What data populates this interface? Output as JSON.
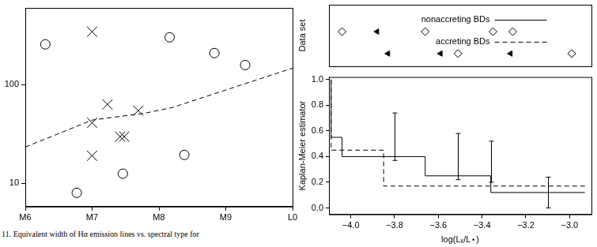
{
  "chart_data": [
    {
      "type": "scatter",
      "caption": "11. Equivalent width of Hα emission lines vs. spectral type for",
      "log": "y",
      "grid": false,
      "xlim": [
        6,
        10
      ],
      "xticks": [
        {
          "value": 6,
          "label": "M6"
        },
        {
          "value": 7,
          "label": "M7"
        },
        {
          "value": 8,
          "label": "M8"
        },
        {
          "value": 9,
          "label": "M9"
        },
        {
          "value": 10,
          "label": "L0"
        }
      ],
      "ylim": [
        5.8,
        600
      ],
      "yticks": [
        10,
        100
      ],
      "series": [
        {
          "marker": "circle",
          "color": "#000000",
          "x": [
            6.3,
            6.77,
            7.46,
            8.16,
            8.38,
            8.83,
            9.29
          ],
          "values": [
            256,
            8.0,
            12.5,
            302,
            19.4,
            209,
            158
          ]
        },
        {
          "marker": "cross",
          "color": "#000000",
          "x": [
            7.0,
            7.0,
            7.0,
            7.23,
            7.42,
            7.48,
            7.69
          ],
          "values": [
            344,
            41,
            19,
            63,
            29.7,
            29.7,
            54.5
          ]
        },
        {
          "type": "line",
          "line_style": "dashed",
          "color": "#000000",
          "x": [
            6,
            7,
            7.8,
            8.2,
            10
          ],
          "values": [
            23.3,
            43.7,
            51.5,
            58.6,
            147
          ]
        }
      ]
    },
    {
      "type": "strip",
      "y_label": "Data set",
      "tick_labels": false,
      "grid": false,
      "xlim": [
        -4.1,
        -2.9
      ],
      "xticks": [
        -4.0,
        -3.8,
        -3.6,
        -3.4,
        -3.2,
        -3.0
      ],
      "series": [
        {
          "name": "nonaccreting BDs",
          "line_style": "solid",
          "color": "#000000",
          "detections": [
            -4.04,
            -3.66,
            -3.35,
            -3.26
          ],
          "upper_limits": [
            -3.88
          ]
        },
        {
          "name": "accreting BDs",
          "line_style": "dashed",
          "color": "#000000",
          "detections": [
            -3.51,
            -2.99
          ],
          "upper_limits": [
            -3.83,
            -3.59,
            -3.27
          ]
        }
      ]
    },
    {
      "type": "step",
      "x_label": "log(Lₓ/L⋆)",
      "y_label": "Kaplan-Meier estimator",
      "grid": false,
      "xlim": [
        -4.1,
        -2.9
      ],
      "xticks": [
        {
          "value": -4.0,
          "label": "−4.0"
        },
        {
          "value": -3.8,
          "label": "−3.8"
        },
        {
          "value": -3.6,
          "label": "−3.6"
        },
        {
          "value": -3.4,
          "label": "−3.4"
        },
        {
          "value": -3.2,
          "label": "−3.2"
        },
        {
          "value": -3.0,
          "label": "−3.0"
        }
      ],
      "ylim": [
        -0.05,
        1.02
      ],
      "yticks": [
        {
          "value": 0,
          "label": "0.0"
        },
        0.2,
        0.4,
        0.6,
        0.8,
        {
          "value": 1,
          "label": "1.0"
        }
      ],
      "series": [
        {
          "line_style": "solid",
          "color": "#000000",
          "x": [
            -4.09,
            -4.04,
            -3.66,
            -3.36,
            -3.29,
            -2.93
          ],
          "values": [
            1.0,
            0.55,
            0.4,
            0.25,
            0.12,
            0.12
          ]
        },
        {
          "line_style": "dashed",
          "color": "#000000",
          "x": [
            -4.09,
            -3.85,
            -3.51,
            -2.93
          ],
          "values": [
            1.0,
            0.45,
            0.17,
            0.17
          ]
        }
      ],
      "error_bars": [
        {
          "x": -3.8,
          "low": 0.37,
          "high": 0.74
        },
        {
          "x": -3.51,
          "low": 0.22,
          "high": 0.58
        },
        {
          "x": -3.36,
          "low": 0.2,
          "high": 0.52
        },
        {
          "x": -3.1,
          "low": 0.0,
          "high": 0.24
        }
      ]
    }
  ]
}
